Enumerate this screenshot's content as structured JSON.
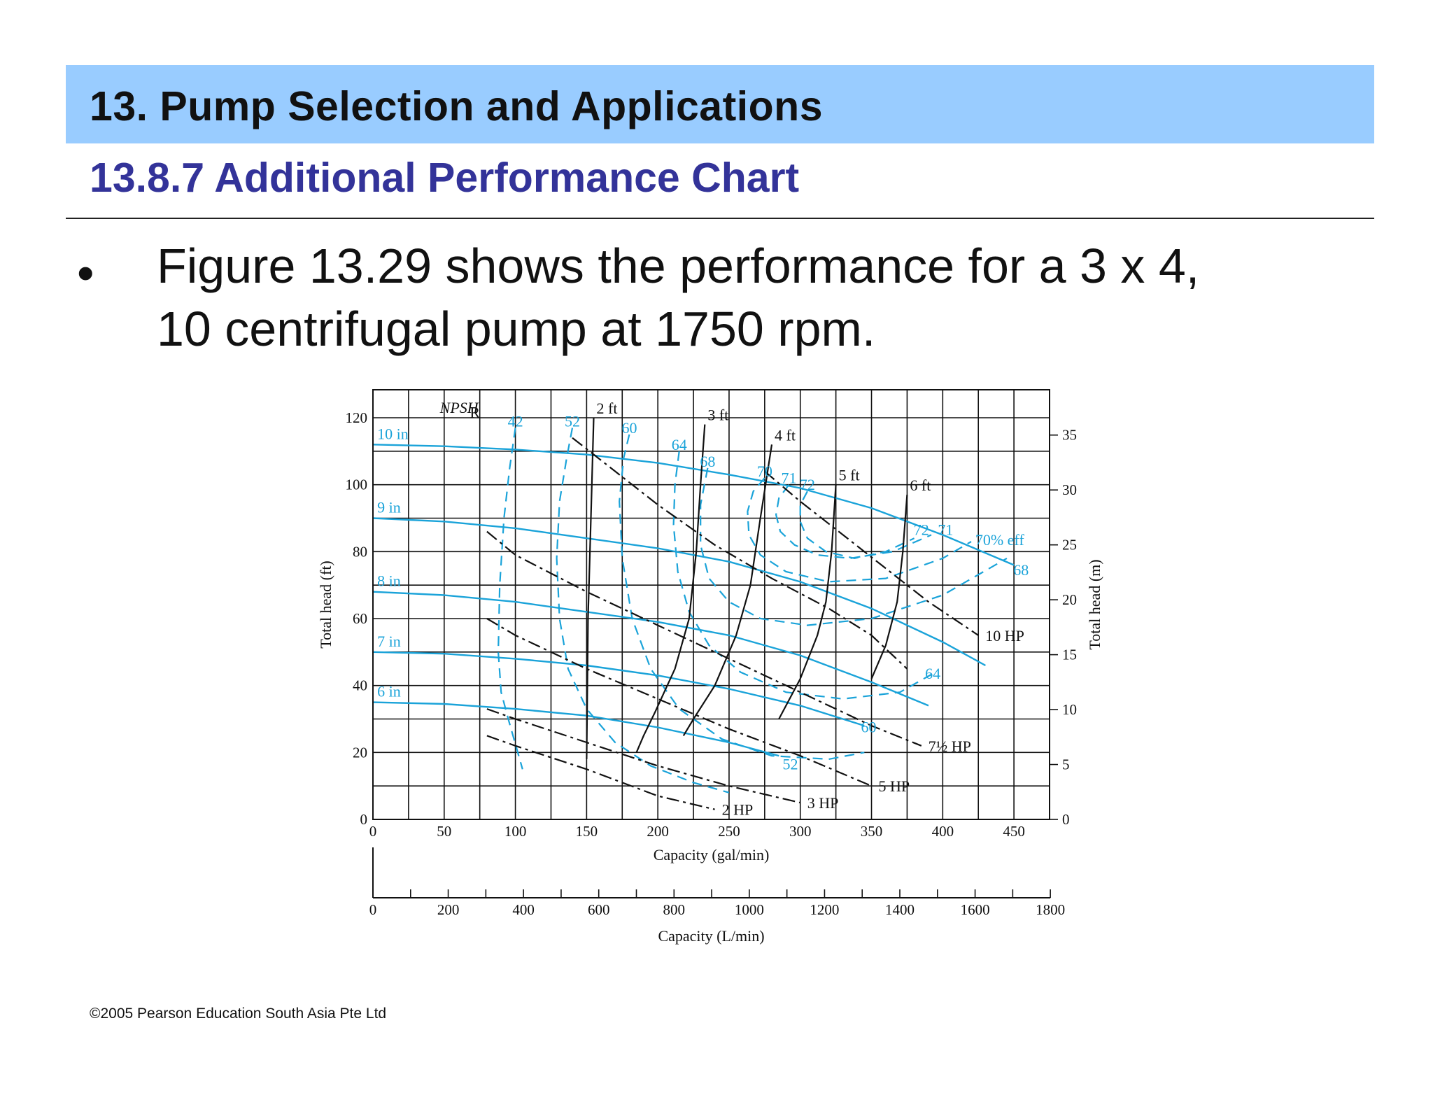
{
  "slide": {
    "title": "13. Pump Selection and Applications",
    "subtitle": "13.8.7 Additional Performance Chart",
    "bullet_symbol": "•",
    "bullet_line_1": "Figure 13.29 shows the performance for a 3 x 4,",
    "bullet_line_2": "10 centrifugal pump at 1750 rpm.",
    "copyright": "©2005 Pearson Education South Asia Pte Ltd"
  },
  "colors": {
    "header_band": "#99ccff",
    "subtitle": "#333399",
    "curve_blue": "#1aa3d9",
    "curve_black": "#111111"
  },
  "chart_data": {
    "type": "line",
    "xlabel": "Capacity (gal/min)",
    "ylabel": "Total head (ft)",
    "ylabel_right": "Total head (m)",
    "x2label": "Capacity (L/min)",
    "xlim": [
      0,
      475
    ],
    "ylim": [
      0,
      120
    ],
    "x_ticks": [
      "0",
      "50",
      "100",
      "150",
      "200",
      "250",
      "300",
      "350",
      "400",
      "450"
    ],
    "y_ticks": [
      "0",
      "20",
      "40",
      "60",
      "80",
      "100",
      "120"
    ],
    "y2_ticks": [
      "0",
      "5",
      "10",
      "15",
      "20",
      "25",
      "30",
      "35"
    ],
    "x2_ticks": [
      "0",
      "200",
      "400",
      "600",
      "800",
      "1000",
      "1200",
      "1400",
      "1600",
      "1800"
    ],
    "grid": true,
    "npsh_label": "NPSH",
    "npsh_subscript": "R",
    "impeller_curves": [
      {
        "name": "10 in",
        "label": "10 in",
        "x": [
          0,
          50,
          100,
          150,
          200,
          250,
          300,
          350,
          400,
          450
        ],
        "y": [
          112,
          111.5,
          110.5,
          109,
          106.5,
          103,
          99,
          93,
          85,
          76
        ]
      },
      {
        "name": "9 in",
        "label": "9 in",
        "x": [
          0,
          50,
          100,
          150,
          200,
          250,
          300,
          350,
          400,
          430
        ],
        "y": [
          90,
          89,
          87,
          84,
          81,
          77,
          71,
          63,
          53,
          46
        ]
      },
      {
        "name": "8 in",
        "label": "8 in",
        "x": [
          0,
          50,
          100,
          150,
          200,
          250,
          300,
          350,
          390
        ],
        "y": [
          68,
          67,
          65,
          62,
          59,
          55,
          49,
          41,
          34
        ]
      },
      {
        "name": "7 in",
        "label": "7 in",
        "x": [
          0,
          50,
          100,
          150,
          200,
          250,
          300,
          345
        ],
        "y": [
          50,
          49.5,
          48,
          46,
          43,
          39,
          34,
          28
        ]
      },
      {
        "name": "6 in",
        "label": "6 in",
        "x": [
          0,
          50,
          100,
          150,
          200,
          250,
          285
        ],
        "y": [
          35,
          34.5,
          33,
          31,
          27.5,
          23,
          19
        ]
      }
    ],
    "efficiency_labels": [
      "42",
      "52",
      "60",
      "64",
      "68",
      "70",
      "71",
      "72"
    ],
    "efficiency_labels_right": [
      {
        "label": "72",
        "x": 385,
        "y": 85
      },
      {
        "label": "71",
        "x": 402,
        "y": 85
      },
      {
        "label": "70% eff",
        "x": 440,
        "y": 82
      },
      {
        "label": "68",
        "x": 455,
        "y": 73
      },
      {
        "label": "64",
        "x": 393,
        "y": 42
      },
      {
        "label": "60",
        "x": 348,
        "y": 26
      },
      {
        "label": "52",
        "x": 293,
        "y": 15
      }
    ],
    "efficiency_contours": [
      {
        "name": "42",
        "x": [
          100,
          96,
          92,
          89,
          88,
          90,
          95,
          105
        ],
        "y": [
          117,
          105,
          90,
          70,
          50,
          38,
          30,
          15
        ]
      },
      {
        "name": "52",
        "x": [
          140,
          136,
          131,
          129,
          131,
          137,
          150,
          170,
          195,
          225,
          250
        ],
        "y": [
          117,
          108,
          95,
          78,
          60,
          45,
          33,
          23,
          16,
          11,
          8
        ]
      },
      {
        "name": "60",
        "x": [
          180,
          176,
          173,
          175,
          182,
          195,
          215,
          245,
          280,
          320,
          345
        ],
        "y": [
          115,
          108,
          95,
          78,
          60,
          45,
          33,
          24,
          19,
          18,
          20
        ]
      },
      {
        "name": "64",
        "x": [
          215,
          212,
          211,
          214,
          222,
          236,
          258,
          290,
          330,
          370,
          395
        ],
        "y": [
          110,
          100,
          88,
          74,
          62,
          52,
          44,
          38,
          36,
          38,
          44
        ]
      },
      {
        "name": "68",
        "x": [
          235,
          230,
          230,
          236,
          250,
          272,
          305,
          350,
          400,
          445
        ],
        "y": [
          105,
          94,
          82,
          72,
          65,
          60,
          58,
          60,
          67,
          78
        ]
      },
      {
        "name": "70",
        "x": [
          275,
          267,
          263,
          264,
          272,
          290,
          320,
          360,
          400,
          420
        ],
        "y": [
          102,
          98,
          92,
          85,
          79,
          74,
          71,
          72,
          78,
          83
        ]
      },
      {
        "name": "71",
        "x": [
          292,
          285,
          283,
          286,
          296,
          312,
          335,
          365,
          392
        ],
        "y": [
          100,
          96,
          91,
          86,
          82,
          79,
          78,
          80,
          85
        ]
      },
      {
        "name": "72",
        "x": [
          305,
          300,
          300,
          305,
          318,
          338,
          360,
          380
        ],
        "y": [
          98,
          94,
          89,
          84,
          80,
          78,
          80,
          84
        ]
      }
    ],
    "npsh_curves": [
      {
        "name": "2 ft",
        "label": "2 ft",
        "x": [
          155,
          153,
          151,
          150
        ],
        "y": [
          120,
          90,
          60,
          18
        ]
      },
      {
        "name": "3 ft",
        "label": "3 ft",
        "x": [
          233,
          230,
          227,
          222,
          212,
          198,
          190,
          185
        ],
        "y": [
          118,
          100,
          80,
          60,
          45,
          32,
          25,
          20
        ]
      },
      {
        "name": "4 ft",
        "label": "4 ft",
        "x": [
          280,
          272,
          265,
          255,
          240,
          225,
          218
        ],
        "y": [
          112,
          90,
          70,
          55,
          40,
          30,
          25
        ]
      },
      {
        "name": "5 ft",
        "label": "5 ft",
        "x": [
          325,
          322,
          318,
          312,
          300,
          285
        ],
        "y": [
          100,
          80,
          65,
          55,
          42,
          30
        ]
      },
      {
        "name": "6 ft",
        "label": "6 ft",
        "x": [
          375,
          372,
          368,
          360,
          350
        ],
        "y": [
          97,
          80,
          65,
          52,
          42
        ]
      }
    ],
    "power_curves": [
      {
        "name": "10 HP",
        "label": "10 HP",
        "x": [
          275,
          300,
          330,
          360,
          390,
          425
        ],
        "y": [
          104,
          95,
          85,
          75,
          65,
          55
        ]
      },
      {
        "name": "7½ HP",
        "label": "7½ HP",
        "x": [
          80,
          100,
          150,
          200,
          250,
          300,
          350,
          385
        ],
        "y": [
          86,
          79,
          68,
          58,
          48,
          38,
          28,
          22
        ]
      },
      {
        "name": "5 HP",
        "label": "5 HP",
        "x": [
          80,
          100,
          150,
          200,
          250,
          300,
          350
        ],
        "y": [
          60,
          55,
          45,
          36,
          27,
          19,
          10
        ]
      },
      {
        "name": "3 HP",
        "label": "3 HP",
        "x": [
          80,
          100,
          150,
          200,
          250,
          300
        ],
        "y": [
          33,
          30,
          23,
          16,
          10,
          5
        ]
      },
      {
        "name": "2 HP",
        "label": "2 HP",
        "x": [
          80,
          100,
          150,
          200,
          240
        ],
        "y": [
          25,
          22,
          15,
          7,
          3
        ]
      },
      {
        "name": "bounding",
        "label": "",
        "x": [
          140,
          170,
          200,
          240,
          280,
          320,
          350,
          375
        ],
        "y": [
          114,
          104,
          94,
          82,
          72,
          63,
          55,
          45
        ]
      }
    ]
  }
}
